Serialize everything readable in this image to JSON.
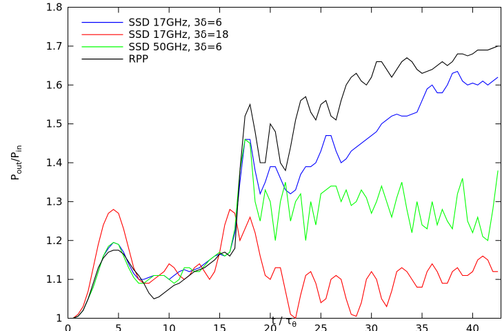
{
  "chart_data": {
    "type": "line",
    "xlabel": [
      "t / τ",
      "θ"
    ],
    "ylabel": [
      "P",
      "out",
      "/P",
      "in"
    ],
    "x": [
      0,
      0.5,
      1,
      1.5,
      2,
      2.5,
      3,
      3.5,
      4,
      4.5,
      5,
      5.5,
      6,
      6.5,
      7,
      7.5,
      8,
      8.5,
      9,
      9.5,
      10,
      10.5,
      11,
      11.5,
      12,
      12.5,
      13,
      13.5,
      14,
      14.5,
      15,
      15.5,
      16,
      16.5,
      17,
      17.5,
      18,
      18.5,
      19,
      19.5,
      20,
      20.5,
      21,
      21.5,
      22,
      22.5,
      23,
      23.5,
      24,
      24.5,
      25,
      25.5,
      26,
      26.5,
      27,
      27.5,
      28,
      28.5,
      29,
      29.5,
      30,
      30.5,
      31,
      31.5,
      32,
      32.5,
      33,
      33.5,
      34,
      34.5,
      35,
      35.5,
      36,
      36.5,
      37,
      37.5,
      38,
      38.5,
      39,
      39.5,
      40,
      40.5,
      41,
      41.5,
      42,
      42.5
    ],
    "series": [
      {
        "name": "SSD 17GHz, 3δ=6",
        "color": "#0000ff",
        "values": [
          1.0,
          1.0,
          1.005,
          1.02,
          1.05,
          1.08,
          1.12,
          1.16,
          1.18,
          1.195,
          1.19,
          1.17,
          1.14,
          1.115,
          1.1,
          1.1,
          1.105,
          1.11,
          1.11,
          1.11,
          1.1,
          1.11,
          1.12,
          1.125,
          1.12,
          1.125,
          1.13,
          1.14,
          1.15,
          1.16,
          1.165,
          1.16,
          1.17,
          1.22,
          1.35,
          1.46,
          1.46,
          1.38,
          1.32,
          1.35,
          1.39,
          1.39,
          1.36,
          1.33,
          1.32,
          1.33,
          1.37,
          1.39,
          1.39,
          1.4,
          1.43,
          1.47,
          1.47,
          1.43,
          1.4,
          1.41,
          1.43,
          1.44,
          1.45,
          1.46,
          1.47,
          1.48,
          1.5,
          1.51,
          1.52,
          1.525,
          1.52,
          1.52,
          1.525,
          1.53,
          1.56,
          1.59,
          1.6,
          1.58,
          1.58,
          1.6,
          1.63,
          1.635,
          1.61,
          1.6,
          1.605,
          1.6,
          1.61,
          1.6,
          1.61,
          1.62
        ]
      },
      {
        "name": "SSD 17GHz, 3δ=18",
        "color": "#ff0000",
        "values": [
          1.0,
          1.0,
          1.01,
          1.03,
          1.07,
          1.13,
          1.19,
          1.24,
          1.27,
          1.28,
          1.27,
          1.23,
          1.18,
          1.13,
          1.1,
          1.09,
          1.09,
          1.1,
          1.11,
          1.12,
          1.14,
          1.13,
          1.11,
          1.1,
          1.11,
          1.13,
          1.14,
          1.12,
          1.1,
          1.12,
          1.17,
          1.24,
          1.28,
          1.27,
          1.2,
          1.23,
          1.26,
          1.22,
          1.16,
          1.11,
          1.1,
          1.13,
          1.13,
          1.07,
          1.01,
          1.0,
          1.06,
          1.11,
          1.12,
          1.09,
          1.04,
          1.05,
          1.1,
          1.11,
          1.1,
          1.05,
          1.01,
          1.005,
          1.04,
          1.1,
          1.12,
          1.1,
          1.05,
          1.03,
          1.07,
          1.12,
          1.13,
          1.12,
          1.1,
          1.08,
          1.08,
          1.12,
          1.14,
          1.12,
          1.09,
          1.09,
          1.12,
          1.13,
          1.11,
          1.11,
          1.12,
          1.15,
          1.16,
          1.15,
          1.12,
          1.12
        ]
      },
      {
        "name": "SSD 50GHz, 3δ=6",
        "color": "#00ff00",
        "values": [
          1.0,
          1.0,
          1.005,
          1.02,
          1.05,
          1.08,
          1.12,
          1.16,
          1.185,
          1.195,
          1.19,
          1.16,
          1.13,
          1.105,
          1.09,
          1.09,
          1.1,
          1.11,
          1.11,
          1.11,
          1.1,
          1.09,
          1.1,
          1.13,
          1.13,
          1.12,
          1.12,
          1.135,
          1.15,
          1.16,
          1.17,
          1.16,
          1.17,
          1.23,
          1.38,
          1.46,
          1.45,
          1.3,
          1.25,
          1.33,
          1.3,
          1.2,
          1.3,
          1.35,
          1.25,
          1.3,
          1.32,
          1.2,
          1.3,
          1.24,
          1.32,
          1.33,
          1.34,
          1.34,
          1.3,
          1.33,
          1.29,
          1.3,
          1.33,
          1.31,
          1.27,
          1.3,
          1.34,
          1.3,
          1.26,
          1.31,
          1.35,
          1.28,
          1.22,
          1.3,
          1.24,
          1.23,
          1.3,
          1.24,
          1.28,
          1.25,
          1.23,
          1.32,
          1.36,
          1.25,
          1.22,
          1.26,
          1.21,
          1.2,
          1.28,
          1.38
        ]
      },
      {
        "name": "RPP",
        "color": "#000000",
        "values": [
          1.0,
          1.0,
          1.005,
          1.02,
          1.05,
          1.09,
          1.13,
          1.155,
          1.17,
          1.175,
          1.175,
          1.165,
          1.145,
          1.125,
          1.11,
          1.09,
          1.065,
          1.05,
          1.055,
          1.065,
          1.075,
          1.085,
          1.09,
          1.1,
          1.11,
          1.12,
          1.125,
          1.13,
          1.14,
          1.15,
          1.165,
          1.17,
          1.16,
          1.18,
          1.38,
          1.52,
          1.55,
          1.48,
          1.4,
          1.4,
          1.5,
          1.48,
          1.4,
          1.38,
          1.44,
          1.51,
          1.56,
          1.57,
          1.53,
          1.51,
          1.55,
          1.56,
          1.52,
          1.51,
          1.56,
          1.6,
          1.62,
          1.63,
          1.61,
          1.6,
          1.62,
          1.66,
          1.66,
          1.64,
          1.62,
          1.64,
          1.66,
          1.67,
          1.66,
          1.64,
          1.63,
          1.635,
          1.64,
          1.65,
          1.66,
          1.65,
          1.66,
          1.68,
          1.68,
          1.675,
          1.68,
          1.69,
          1.69,
          1.69,
          1.695,
          1.7
        ]
      }
    ],
    "xlim": [
      0,
      42.8
    ],
    "xticks": [
      0,
      5,
      10,
      15,
      20,
      25,
      30,
      35,
      40
    ],
    "ylim": [
      1,
      1.8
    ],
    "yticks": [
      1,
      1.1,
      1.2,
      1.3,
      1.4,
      1.5,
      1.6,
      1.7,
      1.8
    ],
    "grid": false,
    "legend": "upper left"
  }
}
